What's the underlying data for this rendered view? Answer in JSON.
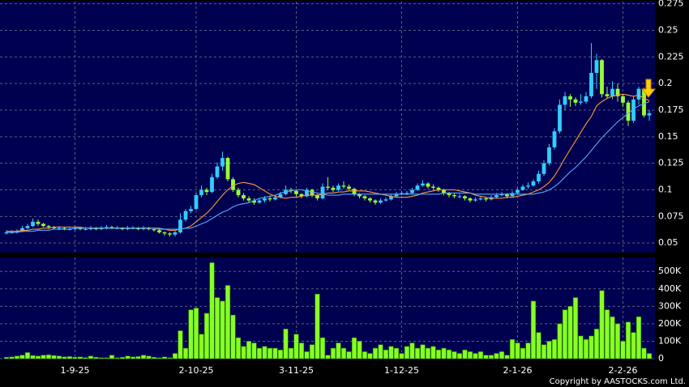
{
  "chart_data": {
    "type": "candlestick",
    "copyright": "Copyright by AASTOCKS.com Ltd.",
    "categories": [
      null,
      null,
      null,
      null,
      null,
      null,
      null,
      null,
      null,
      null,
      null,
      null,
      null,
      "1-9-25",
      null,
      null,
      null,
      null,
      null,
      null,
      null,
      null,
      null,
      null,
      null,
      null,
      null,
      null,
      null,
      null,
      null,
      null,
      null,
      null,
      null,
      null,
      "2-10-25",
      null,
      null,
      null,
      null,
      null,
      null,
      null,
      null,
      null,
      null,
      null,
      null,
      null,
      null,
      null,
      null,
      null,
      null,
      "3-11-25",
      null,
      null,
      null,
      null,
      null,
      null,
      null,
      null,
      null,
      null,
      null,
      null,
      null,
      null,
      null,
      null,
      null,
      null,
      null,
      "1-12-25",
      null,
      null,
      null,
      null,
      null,
      null,
      null,
      null,
      null,
      null,
      null,
      null,
      null,
      null,
      null,
      null,
      null,
      null,
      null,
      null,
      null,
      "2-1-26",
      null,
      null,
      null,
      null,
      null,
      null,
      null,
      null,
      null,
      null,
      null,
      null,
      null,
      null,
      null,
      null,
      null,
      null,
      null,
      "2-2-26",
      null,
      null,
      null,
      null,
      null
    ],
    "open": [
      0.059,
      0.06,
      0.06,
      0.061,
      0.064,
      0.066,
      0.07,
      0.068,
      0.066,
      0.065,
      0.064,
      0.064,
      0.063,
      0.063,
      0.064,
      0.063,
      0.063,
      0.064,
      0.063,
      0.064,
      0.065,
      0.064,
      0.064,
      0.063,
      0.064,
      0.064,
      0.063,
      0.064,
      0.063,
      0.062,
      0.06,
      0.059,
      0.058,
      0.06,
      0.072,
      0.08,
      0.082,
      0.095,
      0.1,
      0.098,
      0.112,
      0.122,
      0.13,
      0.11,
      0.1,
      0.095,
      0.092,
      0.09,
      0.088,
      0.09,
      0.092,
      0.091,
      0.093,
      0.096,
      0.1,
      0.099,
      0.096,
      0.094,
      0.1,
      0.095,
      0.092,
      0.103,
      0.102,
      0.1,
      0.104,
      0.103,
      0.101,
      0.096,
      0.094,
      0.092,
      0.09,
      0.088,
      0.09,
      0.091,
      0.094,
      0.096,
      0.097,
      0.097,
      0.1,
      0.104,
      0.106,
      0.103,
      0.102,
      0.1,
      0.097,
      0.095,
      0.094,
      0.094,
      0.092,
      0.09,
      0.091,
      0.092,
      0.091,
      0.093,
      0.095,
      0.096,
      0.094,
      0.097,
      0.1,
      0.103,
      0.104,
      0.108,
      0.115,
      0.125,
      0.14,
      0.155,
      0.18,
      0.188,
      0.185,
      0.182,
      0.183,
      0.188,
      0.21,
      0.222,
      0.19,
      0.188,
      0.195,
      0.188,
      0.182,
      0.165,
      0.185,
      0.195,
      0.17
    ],
    "high": [
      0.062,
      0.062,
      0.063,
      0.066,
      0.068,
      0.073,
      0.072,
      0.069,
      0.067,
      0.066,
      0.066,
      0.065,
      0.065,
      0.066,
      0.065,
      0.065,
      0.066,
      0.065,
      0.066,
      0.067,
      0.066,
      0.066,
      0.065,
      0.066,
      0.066,
      0.065,
      0.066,
      0.065,
      0.064,
      0.063,
      0.061,
      0.06,
      0.062,
      0.078,
      0.082,
      0.085,
      0.097,
      0.104,
      0.102,
      0.115,
      0.126,
      0.136,
      0.131,
      0.112,
      0.102,
      0.097,
      0.094,
      0.092,
      0.092,
      0.094,
      0.094,
      0.095,
      0.098,
      0.104,
      0.102,
      0.1,
      0.097,
      0.102,
      0.101,
      0.096,
      0.106,
      0.112,
      0.104,
      0.106,
      0.108,
      0.105,
      0.102,
      0.097,
      0.095,
      0.093,
      0.091,
      0.092,
      0.093,
      0.096,
      0.098,
      0.099,
      0.099,
      0.102,
      0.106,
      0.109,
      0.107,
      0.105,
      0.103,
      0.101,
      0.098,
      0.097,
      0.096,
      0.095,
      0.093,
      0.093,
      0.094,
      0.093,
      0.095,
      0.097,
      0.098,
      0.097,
      0.099,
      0.102,
      0.105,
      0.107,
      0.11,
      0.118,
      0.128,
      0.143,
      0.158,
      0.185,
      0.192,
      0.19,
      0.187,
      0.19,
      0.192,
      0.238,
      0.228,
      0.223,
      0.197,
      0.202,
      0.2,
      0.19,
      0.184,
      0.188,
      0.197,
      0.196,
      0.175
    ],
    "low": [
      0.058,
      0.059,
      0.059,
      0.06,
      0.063,
      0.065,
      0.066,
      0.065,
      0.063,
      0.063,
      0.062,
      0.062,
      0.062,
      0.062,
      0.062,
      0.062,
      0.062,
      0.062,
      0.062,
      0.063,
      0.063,
      0.063,
      0.062,
      0.062,
      0.063,
      0.062,
      0.062,
      0.062,
      0.061,
      0.059,
      0.057,
      0.056,
      0.056,
      0.059,
      0.07,
      0.078,
      0.081,
      0.093,
      0.095,
      0.097,
      0.11,
      0.118,
      0.108,
      0.098,
      0.093,
      0.09,
      0.088,
      0.086,
      0.087,
      0.088,
      0.089,
      0.09,
      0.092,
      0.095,
      0.097,
      0.094,
      0.092,
      0.093,
      0.093,
      0.09,
      0.091,
      0.1,
      0.098,
      0.099,
      0.101,
      0.099,
      0.094,
      0.092,
      0.09,
      0.088,
      0.086,
      0.087,
      0.089,
      0.09,
      0.093,
      0.095,
      0.095,
      0.096,
      0.099,
      0.103,
      0.101,
      0.1,
      0.098,
      0.095,
      0.093,
      0.092,
      0.092,
      0.09,
      0.088,
      0.089,
      0.09,
      0.089,
      0.09,
      0.092,
      0.094,
      0.092,
      0.093,
      0.096,
      0.099,
      0.101,
      0.103,
      0.106,
      0.113,
      0.123,
      0.138,
      0.153,
      0.175,
      0.178,
      0.179,
      0.18,
      0.181,
      0.186,
      0.195,
      0.187,
      0.186,
      0.185,
      0.183,
      0.178,
      0.16,
      0.163,
      0.18,
      0.168,
      0.165
    ],
    "close": [
      0.06,
      0.06,
      0.061,
      0.064,
      0.066,
      0.07,
      0.068,
      0.066,
      0.065,
      0.064,
      0.064,
      0.063,
      0.063,
      0.064,
      0.063,
      0.063,
      0.064,
      0.063,
      0.064,
      0.065,
      0.064,
      0.064,
      0.063,
      0.064,
      0.064,
      0.063,
      0.064,
      0.063,
      0.062,
      0.06,
      0.059,
      0.058,
      0.06,
      0.072,
      0.08,
      0.082,
      0.095,
      0.1,
      0.098,
      0.112,
      0.122,
      0.13,
      0.11,
      0.1,
      0.095,
      0.092,
      0.09,
      0.088,
      0.09,
      0.092,
      0.091,
      0.093,
      0.096,
      0.1,
      0.099,
      0.096,
      0.094,
      0.1,
      0.095,
      0.092,
      0.103,
      0.102,
      0.1,
      0.104,
      0.103,
      0.101,
      0.096,
      0.094,
      0.092,
      0.09,
      0.088,
      0.09,
      0.091,
      0.094,
      0.096,
      0.097,
      0.097,
      0.1,
      0.104,
      0.106,
      0.103,
      0.102,
      0.1,
      0.097,
      0.095,
      0.094,
      0.094,
      0.092,
      0.09,
      0.091,
      0.092,
      0.091,
      0.093,
      0.095,
      0.096,
      0.094,
      0.097,
      0.1,
      0.103,
      0.104,
      0.108,
      0.115,
      0.125,
      0.14,
      0.155,
      0.18,
      0.188,
      0.185,
      0.182,
      0.183,
      0.188,
      0.21,
      0.222,
      0.19,
      0.188,
      0.195,
      0.188,
      0.182,
      0.165,
      0.185,
      0.195,
      0.17,
      0.172
    ],
    "up_color": "#33ccff",
    "down_color": "#99ff33",
    "ma": [
      {
        "color": "#ff9933",
        "values": [
          0.061,
          0.061,
          0.061,
          0.062,
          0.062,
          0.063,
          0.063,
          0.064,
          0.064,
          0.065,
          0.065,
          0.065,
          0.065,
          0.065,
          0.065,
          0.064,
          0.064,
          0.064,
          0.064,
          0.064,
          0.064,
          0.064,
          0.064,
          0.064,
          0.064,
          0.064,
          0.064,
          0.064,
          0.064,
          0.063,
          0.063,
          0.062,
          0.062,
          0.063,
          0.064,
          0.066,
          0.07,
          0.074,
          0.078,
          0.083,
          0.089,
          0.095,
          0.1,
          0.104,
          0.106,
          0.107,
          0.106,
          0.105,
          0.102,
          0.099,
          0.096,
          0.094,
          0.093,
          0.092,
          0.093,
          0.093,
          0.094,
          0.095,
          0.095,
          0.095,
          0.096,
          0.097,
          0.097,
          0.098,
          0.098,
          0.099,
          0.099,
          0.099,
          0.099,
          0.098,
          0.097,
          0.096,
          0.095,
          0.094,
          0.093,
          0.093,
          0.093,
          0.094,
          0.095,
          0.097,
          0.098,
          0.099,
          0.1,
          0.1,
          0.1,
          0.1,
          0.099,
          0.098,
          0.097,
          0.095,
          0.094,
          0.093,
          0.092,
          0.092,
          0.092,
          0.093,
          0.093,
          0.094,
          0.095,
          0.096,
          0.098,
          0.1,
          0.103,
          0.107,
          0.113,
          0.121,
          0.13,
          0.138,
          0.146,
          0.154,
          0.162,
          0.169,
          0.179,
          0.183,
          0.186,
          0.188,
          0.189,
          0.19,
          0.189,
          0.188,
          0.189,
          0.186,
          0.184
        ]
      },
      {
        "color": "#55aaff",
        "values": [
          0.06,
          0.06,
          0.06,
          0.061,
          0.061,
          0.061,
          0.062,
          0.062,
          0.062,
          0.063,
          0.063,
          0.063,
          0.063,
          0.064,
          0.064,
          0.064,
          0.064,
          0.064,
          0.064,
          0.064,
          0.064,
          0.064,
          0.064,
          0.064,
          0.064,
          0.064,
          0.064,
          0.064,
          0.064,
          0.064,
          0.063,
          0.063,
          0.063,
          0.063,
          0.064,
          0.064,
          0.066,
          0.068,
          0.07,
          0.073,
          0.076,
          0.079,
          0.081,
          0.084,
          0.086,
          0.087,
          0.088,
          0.09,
          0.092,
          0.093,
          0.094,
          0.095,
          0.097,
          0.098,
          0.099,
          0.1,
          0.1,
          0.099,
          0.098,
          0.097,
          0.096,
          0.095,
          0.095,
          0.095,
          0.096,
          0.096,
          0.096,
          0.096,
          0.096,
          0.096,
          0.096,
          0.096,
          0.096,
          0.096,
          0.096,
          0.096,
          0.096,
          0.096,
          0.096,
          0.096,
          0.096,
          0.096,
          0.096,
          0.097,
          0.097,
          0.097,
          0.097,
          0.097,
          0.097,
          0.096,
          0.096,
          0.096,
          0.096,
          0.096,
          0.096,
          0.096,
          0.096,
          0.096,
          0.096,
          0.096,
          0.096,
          0.097,
          0.098,
          0.1,
          0.103,
          0.107,
          0.112,
          0.117,
          0.121,
          0.126,
          0.131,
          0.137,
          0.143,
          0.149,
          0.154,
          0.159,
          0.164,
          0.168,
          0.172,
          0.176,
          0.179,
          0.181,
          0.183
        ]
      }
    ],
    "ylim": [
      0.041,
      0.277
    ],
    "yticks": [
      0.05,
      0.075,
      0.1,
      0.125,
      0.15,
      0.175,
      0.2,
      0.225,
      0.25,
      0.275
    ],
    "volume": [
      8000,
      10000,
      15000,
      20000,
      35000,
      18000,
      15000,
      20000,
      22000,
      18000,
      15000,
      10000,
      12000,
      8000,
      10000,
      6000,
      15000,
      8000,
      5000,
      5000,
      20000,
      5000,
      8000,
      15000,
      10000,
      12000,
      20000,
      15000,
      8000,
      5000,
      10000,
      5000,
      30000,
      160000,
      60000,
      280000,
      290000,
      140000,
      260000,
      550000,
      350000,
      330000,
      420000,
      250000,
      120000,
      70000,
      100000,
      90000,
      60000,
      70000,
      60000,
      60000,
      50000,
      170000,
      60000,
      140000,
      90000,
      40000,
      80000,
      370000,
      120000,
      20000,
      60000,
      90000,
      60000,
      40000,
      120000,
      100000,
      40000,
      30000,
      60000,
      80000,
      50000,
      70000,
      60000,
      30000,
      70000,
      90000,
      60000,
      80000,
      60000,
      70000,
      50000,
      60000,
      50000,
      40000,
      30000,
      50000,
      40000,
      30000,
      40000,
      20000,
      20000,
      30000,
      40000,
      20000,
      110000,
      90000,
      60000,
      90000,
      330000,
      150000,
      80000,
      100000,
      110000,
      200000,
      280000,
      300000,
      350000,
      130000,
      110000,
      130000,
      170000,
      390000,
      280000,
      240000,
      200000,
      100000,
      210000,
      150000,
      240000,
      60000,
      30000
    ],
    "volume_color": "#88ff22",
    "vlim": [
      0,
      580000
    ],
    "vticks": [
      0,
      {
        "value": 100000,
        "label": "100K"
      },
      {
        "value": 200000,
        "label": "200K"
      },
      {
        "value": 300000,
        "label": "300K"
      },
      {
        "value": 400000,
        "label": "400K"
      },
      {
        "value": 500000,
        "label": "500K"
      }
    ],
    "grid": true
  }
}
